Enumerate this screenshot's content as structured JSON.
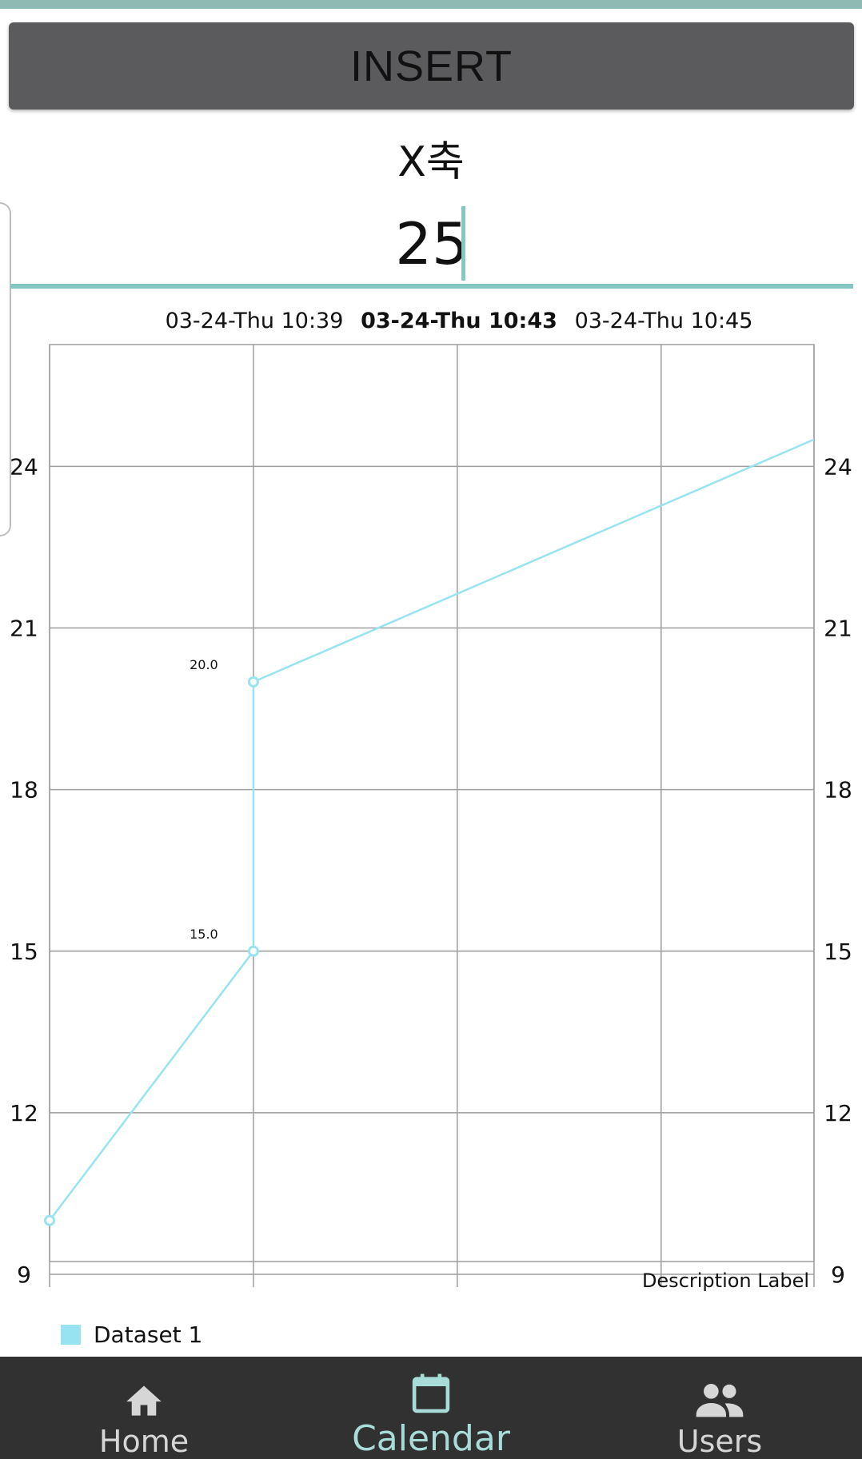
{
  "insert_button": {
    "label": "INSERT"
  },
  "axis_title": "X축",
  "value_input": {
    "value": "25"
  },
  "chart_data": {
    "type": "line",
    "categories": [
      "03-24-Thu 10:39",
      "03-24-Thu 10:43",
      "03-24-Thu 10:45"
    ],
    "highlighted_category": "03-24-Thu 10:43",
    "x": [
      0,
      1,
      1,
      3.75
    ],
    "series": [
      {
        "name": "Dataset 1",
        "values": [
          10,
          15,
          20,
          24.5
        ],
        "value_labels": [
          null,
          "15.0",
          "20.0",
          null
        ],
        "color": "#98e3f1"
      }
    ],
    "y_ticks": [
      9,
      12,
      15,
      18,
      21,
      24
    ],
    "ylim": [
      9,
      26.5
    ],
    "xlim": [
      0,
      3.75
    ],
    "grid": true,
    "legend": "bottom-left",
    "description": "Description Label"
  },
  "nav": {
    "home": {
      "label": "Home",
      "icon": "home-icon",
      "color": "#d6d6d6"
    },
    "calendar": {
      "label": "Calendar",
      "icon": "calendar-icon",
      "color": "#a8dcd8",
      "active": true
    },
    "users": {
      "label": "Users",
      "icon": "users-icon",
      "color": "#d6d6d6"
    }
  },
  "colors": {
    "accent": "#85c7c3",
    "top_bar": "#8fb9b3",
    "button": "#5b5b5d",
    "nav_bg": "#313131"
  }
}
